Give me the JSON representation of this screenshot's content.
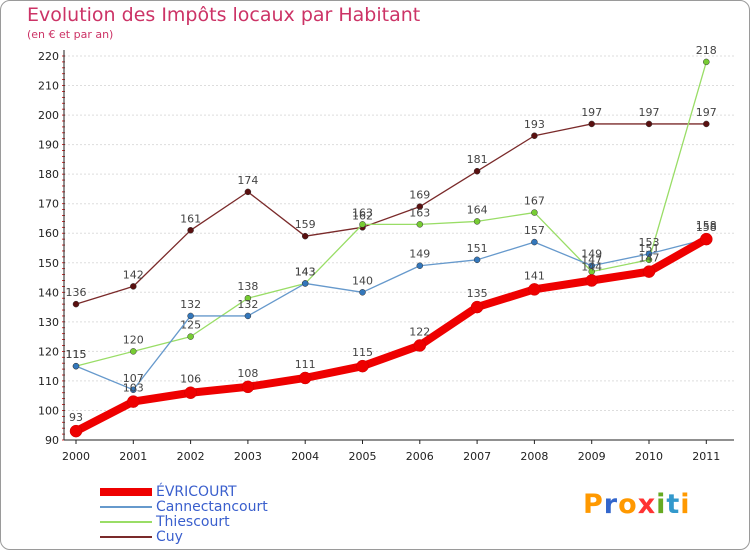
{
  "header": {
    "title": "Evolution des Impôts locaux par Habitant",
    "subtitle": "(en € et par an)"
  },
  "logo": {
    "letters": [
      "P",
      "r",
      "o",
      "x",
      "i",
      "t",
      "i"
    ],
    "colors": [
      "#ff9900",
      "#3366cc",
      "#ff9900",
      "#ff3333",
      "#66aa22",
      "#3399cc",
      "#ff9900"
    ]
  },
  "chart_data": {
    "type": "line",
    "title": "Evolution des Impôts locaux par Habitant",
    "subtitle": "(en € et par an)",
    "xlabel": "",
    "ylabel": "",
    "categories": [
      "2000",
      "2001",
      "2002",
      "2003",
      "2004",
      "2005",
      "2006",
      "2007",
      "2008",
      "2009",
      "2010",
      "2011"
    ],
    "ylim": [
      90,
      220
    ],
    "yticks": [
      90,
      100,
      110,
      120,
      130,
      140,
      150,
      160,
      170,
      180,
      190,
      200,
      210,
      220
    ],
    "grid": "horizontal",
    "legend_position": "bottom-left",
    "series": [
      {
        "name": "Cuy",
        "color": "#7a2a2a",
        "marker": "#5a1010",
        "width": 1.3,
        "values": [
          136,
          142,
          161,
          174,
          159,
          162,
          169,
          181,
          193,
          197,
          197,
          197
        ]
      },
      {
        "name": "Thiescourt",
        "color": "#99dd66",
        "marker": "#77cc33",
        "width": 1.3,
        "values": [
          115,
          120,
          125,
          138,
          143,
          163,
          163,
          164,
          167,
          147,
          151,
          218
        ]
      },
      {
        "name": "Cannectancourt",
        "color": "#6699cc",
        "marker": "#3377bb",
        "width": 1.3,
        "values": [
          115,
          107,
          132,
          132,
          143,
          140,
          149,
          151,
          157,
          149,
          153,
          158
        ]
      },
      {
        "name": "ÉVRICOURT",
        "color": "#ee0000",
        "marker": "#ee0000",
        "width": 8,
        "values": [
          93,
          103,
          106,
          108,
          111,
          115,
          122,
          135,
          141,
          144,
          147,
          158
        ]
      }
    ],
    "data_labels": {
      "Cuy": [
        "136",
        "142",
        "161",
        "174",
        "159",
        "162",
        "169",
        "181",
        "193",
        "197",
        "197",
        "197"
      ],
      "Thiescourt": [
        "115",
        "120",
        "125",
        "138",
        "143",
        "163",
        "163",
        "164",
        "167",
        "147",
        "151",
        "218"
      ],
      "Cannectancourt": [
        "115",
        "107",
        "132",
        "132",
        "143",
        "140",
        "149",
        "151",
        "157",
        "149",
        "153",
        "158"
      ],
      "ÉVRICOURT": [
        "93",
        "103",
        "106",
        "108",
        "111",
        "115",
        "122",
        "135",
        "141",
        "144",
        "147",
        "158"
      ]
    },
    "legend": [
      "ÉVRICOURT",
      "Cannectancourt",
      "Thiescourt",
      "Cuy"
    ]
  }
}
